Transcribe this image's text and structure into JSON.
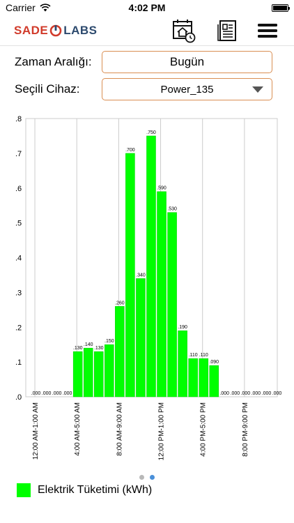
{
  "status_bar": {
    "carrier": "Carrier",
    "time": "4:02 PM"
  },
  "nav": {
    "logo_left": "SADE",
    "logo_right": "LABS",
    "icons": [
      "calendar-home-icon",
      "document-icon",
      "menu-icon"
    ]
  },
  "form": {
    "range_label": "Zaman Aralığı:",
    "range_value": "Bugün",
    "device_label": "Seçili Cihaz:",
    "device_value": "Power_135"
  },
  "colors": {
    "bar": "#00ff00",
    "bar_stroke": "#00cc00",
    "field_border": "#d98e52",
    "grid": "#cccccc",
    "dot_inactive": "#b8b8b8",
    "dot_active": "#4a90d9"
  },
  "chart_data": {
    "type": "bar",
    "ylim": [
      0,
      0.8
    ],
    "y_ticks": [
      ".0",
      ".1",
      ".2",
      ".3",
      ".4",
      ".5",
      ".6",
      ".7",
      ".8"
    ],
    "x_tick_labels": [
      "12:00 AM-1:00 AM",
      "4:00 AM-5:00 AM",
      "8:00 AM-9:00 AM",
      "12:00 PM-1:00 PM",
      "4:00 PM-5:00 PM",
      "8:00 PM-9:00 PM"
    ],
    "values": [
      0,
      0,
      0,
      0,
      0.13,
      0.14,
      0.13,
      0.15,
      0.26,
      0.7,
      0.34,
      0.75,
      0.59,
      0.53,
      0.19,
      0.11,
      0.11,
      0.09,
      0,
      0,
      0,
      0,
      0,
      0
    ],
    "value_labels": [
      ".000",
      ".000",
      ".000",
      ".000",
      ".130",
      ".140",
      ".130",
      ".150",
      ".260",
      ".700",
      ".340",
      ".750",
      ".590",
      ".530",
      ".190",
      ".110",
      ".110",
      ".090",
      ".000",
      ".000",
      ".000",
      ".000",
      ".000",
      ".000"
    ],
    "series": [
      {
        "name": "Elektrik Tüketimi (kWh)"
      }
    ],
    "grid": true,
    "legend_position": "bottom-left"
  },
  "pager": {
    "page_count": 2,
    "active_index": 1
  }
}
